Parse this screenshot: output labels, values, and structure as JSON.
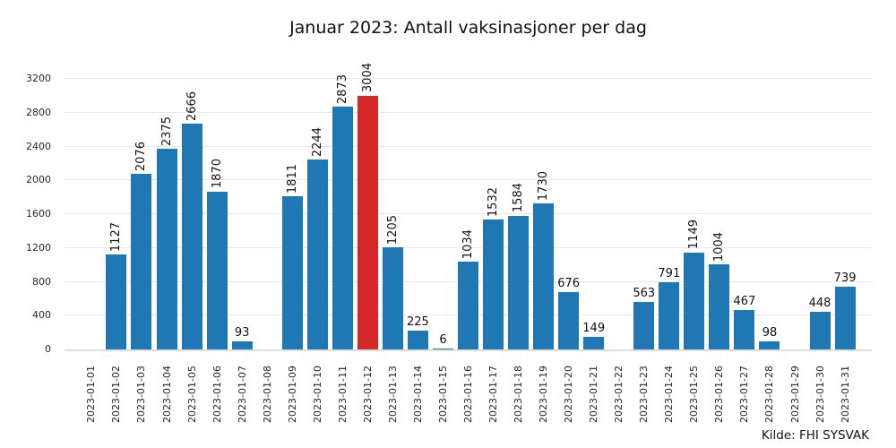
{
  "chart_data": {
    "type": "bar",
    "title": "Januar 2023: Antall vaksinasjoner per dag",
    "source": "Kilde: FHI SYSVAK",
    "xlabel": "",
    "ylabel": "",
    "grid": true,
    "legend": "none",
    "ylim": [
      0,
      3338
    ],
    "yticks": [
      0,
      400,
      800,
      1200,
      1600,
      2000,
      2400,
      2800,
      3200
    ],
    "bar_color": "#1f77b4",
    "highlight_color": "#d62728",
    "highlight_category": "2023-01-12",
    "categories": [
      "2023-01-01",
      "2023-01-02",
      "2023-01-03",
      "2023-01-04",
      "2023-01-05",
      "2023-01-06",
      "2023-01-07",
      "2023-01-08",
      "2023-01-09",
      "2023-01-10",
      "2023-01-11",
      "2023-01-12",
      "2023-01-13",
      "2023-01-14",
      "2023-01-15",
      "2023-01-16",
      "2023-01-17",
      "2023-01-18",
      "2023-01-19",
      "2023-01-20",
      "2023-01-21",
      "2023-01-22",
      "2023-01-23",
      "2023-01-24",
      "2023-01-25",
      "2023-01-26",
      "2023-01-27",
      "2023-01-28",
      "2023-01-29",
      "2023-01-30",
      "2023-01-31"
    ],
    "values": [
      null,
      1127,
      2076,
      2375,
      2666,
      1870,
      93,
      null,
      1811,
      2244,
      2873,
      3004,
      1205,
      225,
      6,
      1034,
      1532,
      1584,
      1730,
      676,
      149,
      null,
      563,
      791,
      1149,
      1004,
      467,
      98,
      null,
      448,
      739
    ]
  }
}
